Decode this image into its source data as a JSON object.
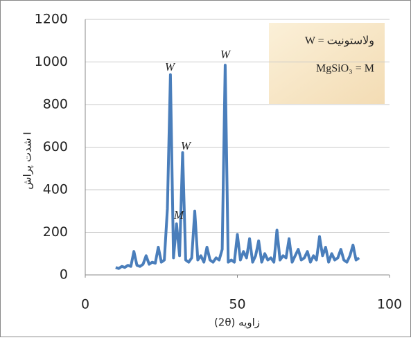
{
  "chart_data": {
    "type": "line",
    "y_label": "شدت پراش I",
    "x_label": "(2θ) زاویه",
    "legend_lines": [
      "W = ولاستونیت",
      "MgSiO₃ = M"
    ],
    "annotations": [
      "W",
      "W",
      "W",
      "M"
    ],
    "x": [
      10,
      11,
      12,
      13,
      14,
      15,
      16,
      17,
      18,
      19,
      20,
      21,
      22,
      23,
      24,
      25,
      26,
      27,
      28,
      29,
      30,
      31,
      32,
      33,
      34,
      35,
      36,
      37,
      38,
      39,
      40,
      41,
      42,
      43,
      44,
      45,
      46,
      47,
      48,
      49,
      50,
      51,
      52,
      53,
      54,
      55,
      56,
      57,
      58,
      59,
      60,
      61,
      62,
      63,
      64,
      65,
      66,
      67,
      68,
      69,
      70,
      71,
      72,
      73,
      74,
      75,
      76,
      77,
      78,
      79,
      80,
      81,
      82,
      83,
      84,
      85,
      86,
      87,
      88,
      89,
      90
    ],
    "series": [
      {
        "color": "#4a7ebb",
        "values": [
          35,
          30,
          40,
          35,
          45,
          40,
          110,
          45,
          40,
          50,
          90,
          50,
          60,
          55,
          130,
          60,
          70,
          310,
          940,
          80,
          240,
          90,
          575,
          70,
          60,
          80,
          300,
          70,
          90,
          60,
          130,
          70,
          60,
          80,
          70,
          120,
          985,
          60,
          70,
          60,
          190,
          70,
          110,
          80,
          170,
          60,
          90,
          160,
          60,
          100,
          70,
          80,
          60,
          210,
          70,
          90,
          80,
          170,
          60,
          90,
          120,
          70,
          80,
          110,
          60,
          90,
          70,
          180,
          90,
          130,
          60,
          100,
          70,
          80,
          120,
          70,
          60,
          90,
          140,
          70,
          80
        ]
      }
    ],
    "xlim": [
      0,
      100
    ],
    "xticks": [
      0,
      50,
      100
    ],
    "ylim": [
      0,
      1200
    ],
    "yticks": [
      0,
      200,
      400,
      600,
      800,
      1000,
      1200
    ],
    "grid": true
  }
}
